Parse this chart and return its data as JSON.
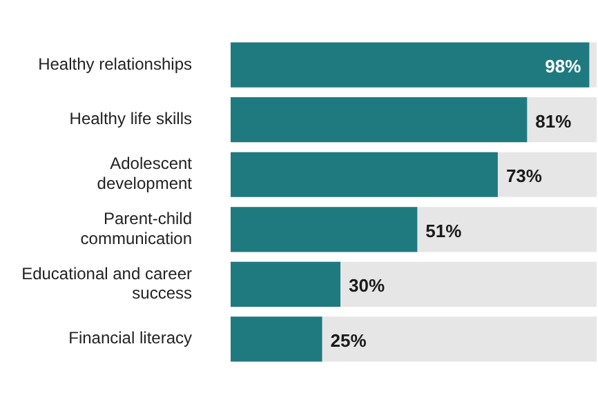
{
  "chart_data": {
    "type": "bar",
    "orientation": "horizontal",
    "categories": [
      "Healthy relationships",
      "Healthy life skills",
      "Adolescent development",
      "Parent-child communication",
      "Educational and career success",
      "Financial literacy"
    ],
    "values": [
      98,
      81,
      73,
      51,
      30,
      25
    ],
    "value_labels": [
      "98%",
      "81%",
      "73%",
      "51%",
      "30%",
      "25%"
    ],
    "color": "#1f7a80",
    "xlim": [
      0,
      100
    ],
    "tick_labels": "y",
    "legend": false
  }
}
